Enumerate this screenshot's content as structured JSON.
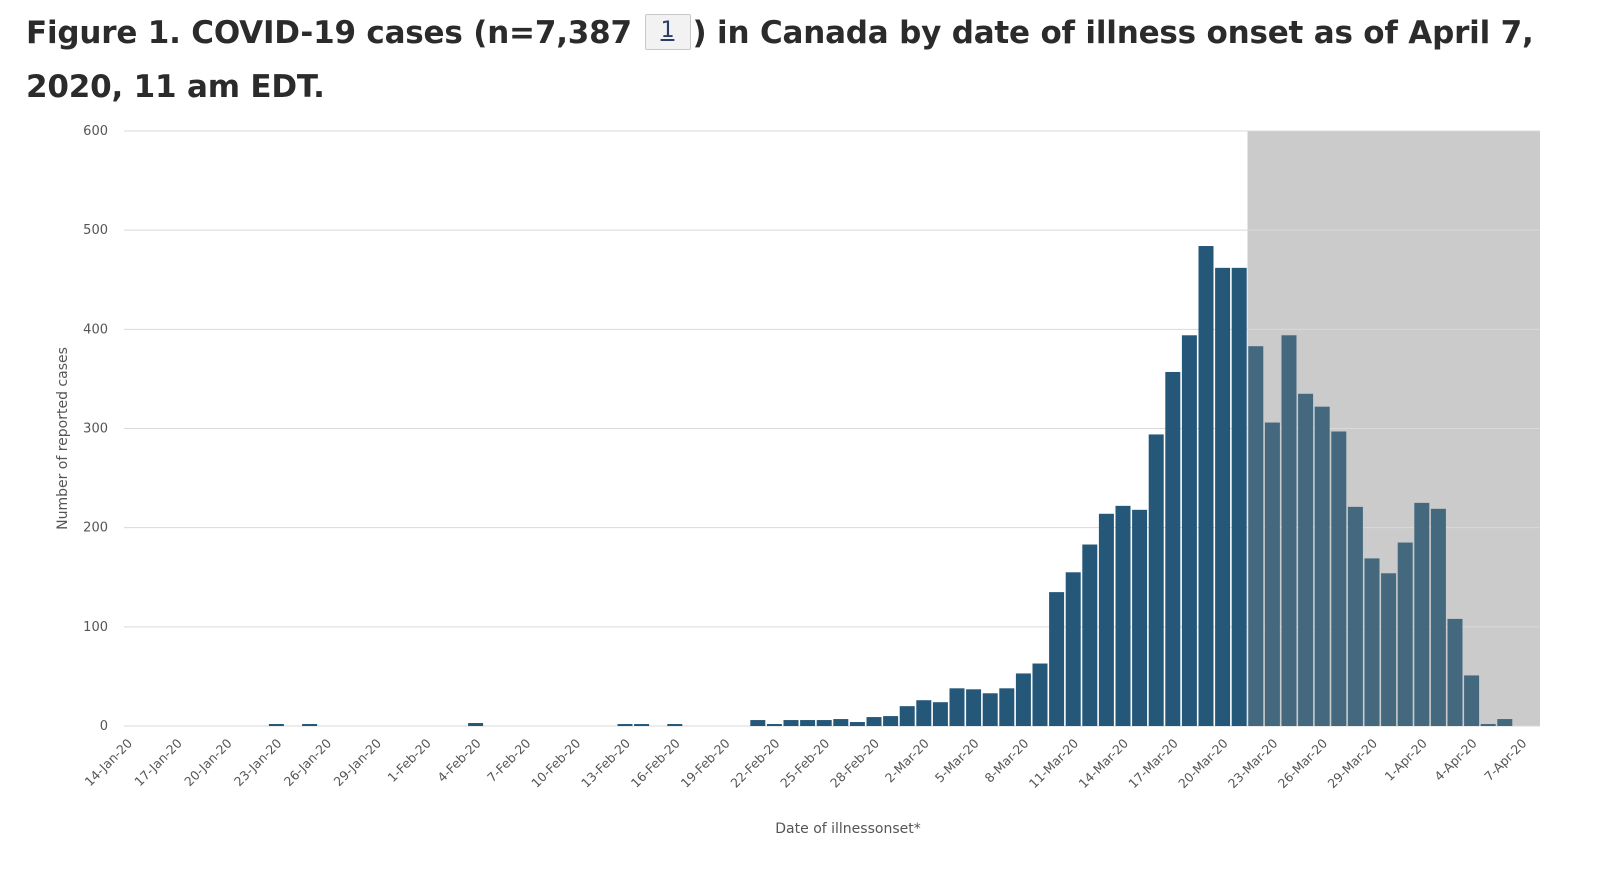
{
  "title": {
    "before": "Figure 1. COVID-19 cases (n=7,387 ",
    "footnote_link": "1",
    "after": ") in Canada by date of illness onset as of April 7, 2020, 11 am EDT."
  },
  "colors": {
    "bar": "#255779",
    "bar_shaded": "#44697f",
    "shaded_region": "#cbcbcb",
    "gridline": "#d9d9d9"
  },
  "chart_data": {
    "type": "bar",
    "xlabel": "Date of illnessonset*",
    "ylabel": "Number of reported cases",
    "ylim": [
      0,
      600
    ],
    "yticks": [
      0,
      100,
      200,
      300,
      400,
      500,
      600
    ],
    "grid": true,
    "shaded_region": {
      "from": "22-Mar-20",
      "to": "7-Apr-20"
    },
    "x_tick_labels": [
      "14-Jan-20",
      "17-Jan-20",
      "20-Jan-20",
      "23-Jan-20",
      "26-Jan-20",
      "29-Jan-20",
      "1-Feb-20",
      "4-Feb-20",
      "7-Feb-20",
      "10-Feb-20",
      "13-Feb-20",
      "16-Feb-20",
      "19-Feb-20",
      "22-Feb-20",
      "25-Feb-20",
      "28-Feb-20",
      "2-Mar-20",
      "5-Mar-20",
      "8-Mar-20",
      "11-Mar-20",
      "14-Mar-20",
      "17-Mar-20",
      "20-Mar-20",
      "23-Mar-20",
      "26-Mar-20",
      "29-Mar-20",
      "1-Apr-20",
      "4-Apr-20",
      "7-Apr-20"
    ],
    "categories": [
      "14-Jan-20",
      "15-Jan-20",
      "16-Jan-20",
      "17-Jan-20",
      "18-Jan-20",
      "19-Jan-20",
      "20-Jan-20",
      "21-Jan-20",
      "22-Jan-20",
      "23-Jan-20",
      "24-Jan-20",
      "25-Jan-20",
      "26-Jan-20",
      "27-Jan-20",
      "28-Jan-20",
      "29-Jan-20",
      "30-Jan-20",
      "31-Jan-20",
      "1-Feb-20",
      "2-Feb-20",
      "3-Feb-20",
      "4-Feb-20",
      "5-Feb-20",
      "6-Feb-20",
      "7-Feb-20",
      "8-Feb-20",
      "9-Feb-20",
      "10-Feb-20",
      "11-Feb-20",
      "12-Feb-20",
      "13-Feb-20",
      "14-Feb-20",
      "15-Feb-20",
      "16-Feb-20",
      "17-Feb-20",
      "18-Feb-20",
      "19-Feb-20",
      "20-Feb-20",
      "21-Feb-20",
      "22-Feb-20",
      "23-Feb-20",
      "24-Feb-20",
      "25-Feb-20",
      "26-Feb-20",
      "27-Feb-20",
      "28-Feb-20",
      "29-Feb-20",
      "1-Mar-20",
      "2-Mar-20",
      "3-Mar-20",
      "4-Mar-20",
      "5-Mar-20",
      "6-Mar-20",
      "7-Mar-20",
      "8-Mar-20",
      "9-Mar-20",
      "10-Mar-20",
      "11-Mar-20",
      "12-Mar-20",
      "13-Mar-20",
      "14-Mar-20",
      "15-Mar-20",
      "16-Mar-20",
      "17-Mar-20",
      "18-Mar-20",
      "19-Mar-20",
      "20-Mar-20",
      "21-Mar-20",
      "22-Mar-20",
      "23-Mar-20",
      "24-Mar-20",
      "25-Mar-20",
      "26-Mar-20",
      "27-Mar-20",
      "28-Mar-20",
      "29-Mar-20",
      "30-Mar-20",
      "31-Mar-20",
      "1-Apr-20",
      "2-Apr-20",
      "3-Apr-20",
      "4-Apr-20",
      "5-Apr-20",
      "6-Apr-20",
      "7-Apr-20"
    ],
    "values": [
      0,
      0,
      0,
      0,
      0,
      0,
      0,
      0,
      0,
      2,
      0,
      2,
      0,
      0,
      0,
      0,
      0,
      0,
      0,
      0,
      0,
      3,
      0,
      0,
      0,
      0,
      0,
      0,
      0,
      0,
      2,
      2,
      0,
      2,
      0,
      0,
      0,
      0,
      6,
      2,
      6,
      6,
      6,
      7,
      4,
      9,
      10,
      20,
      26,
      24,
      38,
      37,
      33,
      38,
      53,
      63,
      135,
      155,
      183,
      214,
      222,
      218,
      294,
      357,
      394,
      484,
      462,
      462,
      383,
      306,
      394,
      335,
      322,
      297,
      221,
      169,
      154,
      185,
      225,
      219,
      108,
      51,
      2,
      7,
      0
    ]
  }
}
